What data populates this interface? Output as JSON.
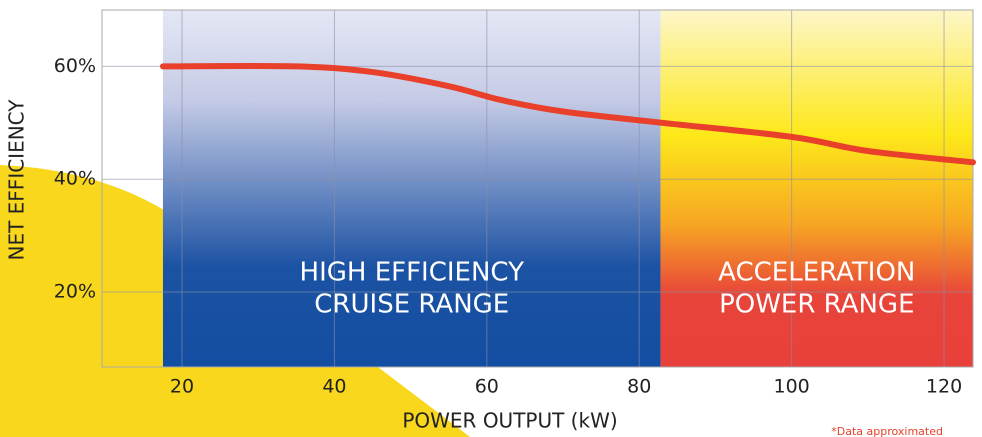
{
  "chart_data": {
    "type": "line",
    "x_label": "POWER OUTPUT (kW)",
    "y_label": "NET EFFICIENCY",
    "footnote": "*Data approximated",
    "xlim": [
      9.5,
      123.8
    ],
    "xticks": [
      20,
      40,
      60,
      80,
      100,
      120
    ],
    "ylim": [
      6.7,
      70
    ],
    "yticks": [
      {
        "value": 20,
        "label": "20%"
      },
      {
        "value": 40,
        "label": "40%"
      },
      {
        "value": 60,
        "label": "60%"
      }
    ],
    "grid": true,
    "regions": [
      {
        "label": [
          "HIGH EFFICIENCY",
          "CRUISE RANGE"
        ],
        "start": 17.5,
        "end": 82.8
      },
      {
        "label": [
          "ACCELERATION",
          "POWER RANGE"
        ],
        "start": 82.8,
        "end": 123.8
      }
    ],
    "series": [
      {
        "color": "#e8402a",
        "x": [
          17.5,
          35,
          45,
          55,
          62,
          70,
          83,
          100,
          110,
          123.8
        ],
        "values": [
          60,
          60,
          59,
          56.5,
          54,
          52,
          50,
          47.5,
          45,
          43
        ]
      }
    ]
  }
}
